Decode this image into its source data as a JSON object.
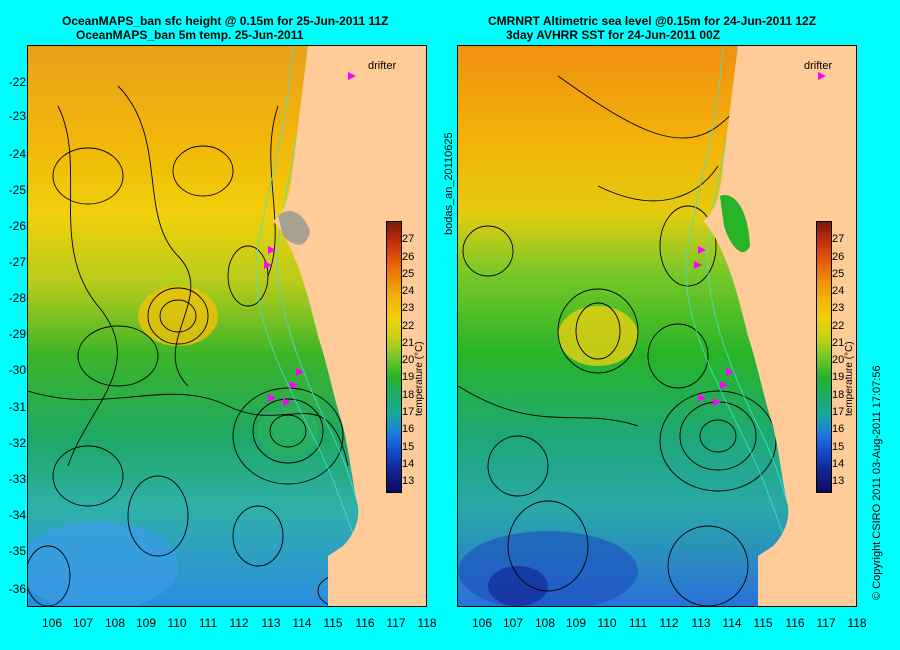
{
  "left_panel": {
    "title_line1": "OceanMAPS_ban sfc height @ 0.15m for 25-Jun-2011 11Z",
    "title_line2": "OceanMAPS_ban 5m temp. 25-Jun-2011"
  },
  "right_panel": {
    "title_line1": "CMRNRT Altimetric sea level  @0.15m  for 24-Jun-2011 12Z",
    "title_line2": "3day AVHRR SST for 24-Jun-2011 00Z"
  },
  "map_extent": {
    "lon_min": 105.5,
    "lon_max": 118.5,
    "lat_min": -36.6,
    "lat_max": -21.4
  },
  "lat_ticks": [
    "-22",
    "-23",
    "-24",
    "-25",
    "-26",
    "-27",
    "-28",
    "-29",
    "-30",
    "-31",
    "-32",
    "-33",
    "-34",
    "-35",
    "-36"
  ],
  "lon_ticks": [
    "106",
    "107",
    "108",
    "109",
    "110",
    "111",
    "112",
    "113",
    "114",
    "115",
    "116",
    "117",
    "118"
  ],
  "colorbar": {
    "ticks": [
      "27",
      "26",
      "25",
      "24",
      "23",
      "22",
      "21",
      "20",
      "19",
      "18",
      "17",
      "16",
      "15",
      "14",
      "13"
    ],
    "title": "temperature (°C)",
    "colors": [
      "#7a1a0a",
      "#c0300a",
      "#e55a0a",
      "#f08a0a",
      "#f2b50a",
      "#f0d00a",
      "#c8d018",
      "#78c828",
      "#28b428",
      "#1ea866",
      "#18a8a0",
      "#1c7ae0",
      "#1646c8",
      "#12208e",
      "#0e0a60"
    ]
  },
  "drifter": {
    "label": "drifter",
    "color": "#ff00ff"
  },
  "side_text": "bodas_an_20110625",
  "copyright": "© Copyright CSIRO 2011    03-Aug-2011 17:07:56",
  "colors": {
    "background": "#00ffff",
    "land": "#ffcc99",
    "contour": "#000000",
    "bathymetry": "#40e0d0"
  }
}
